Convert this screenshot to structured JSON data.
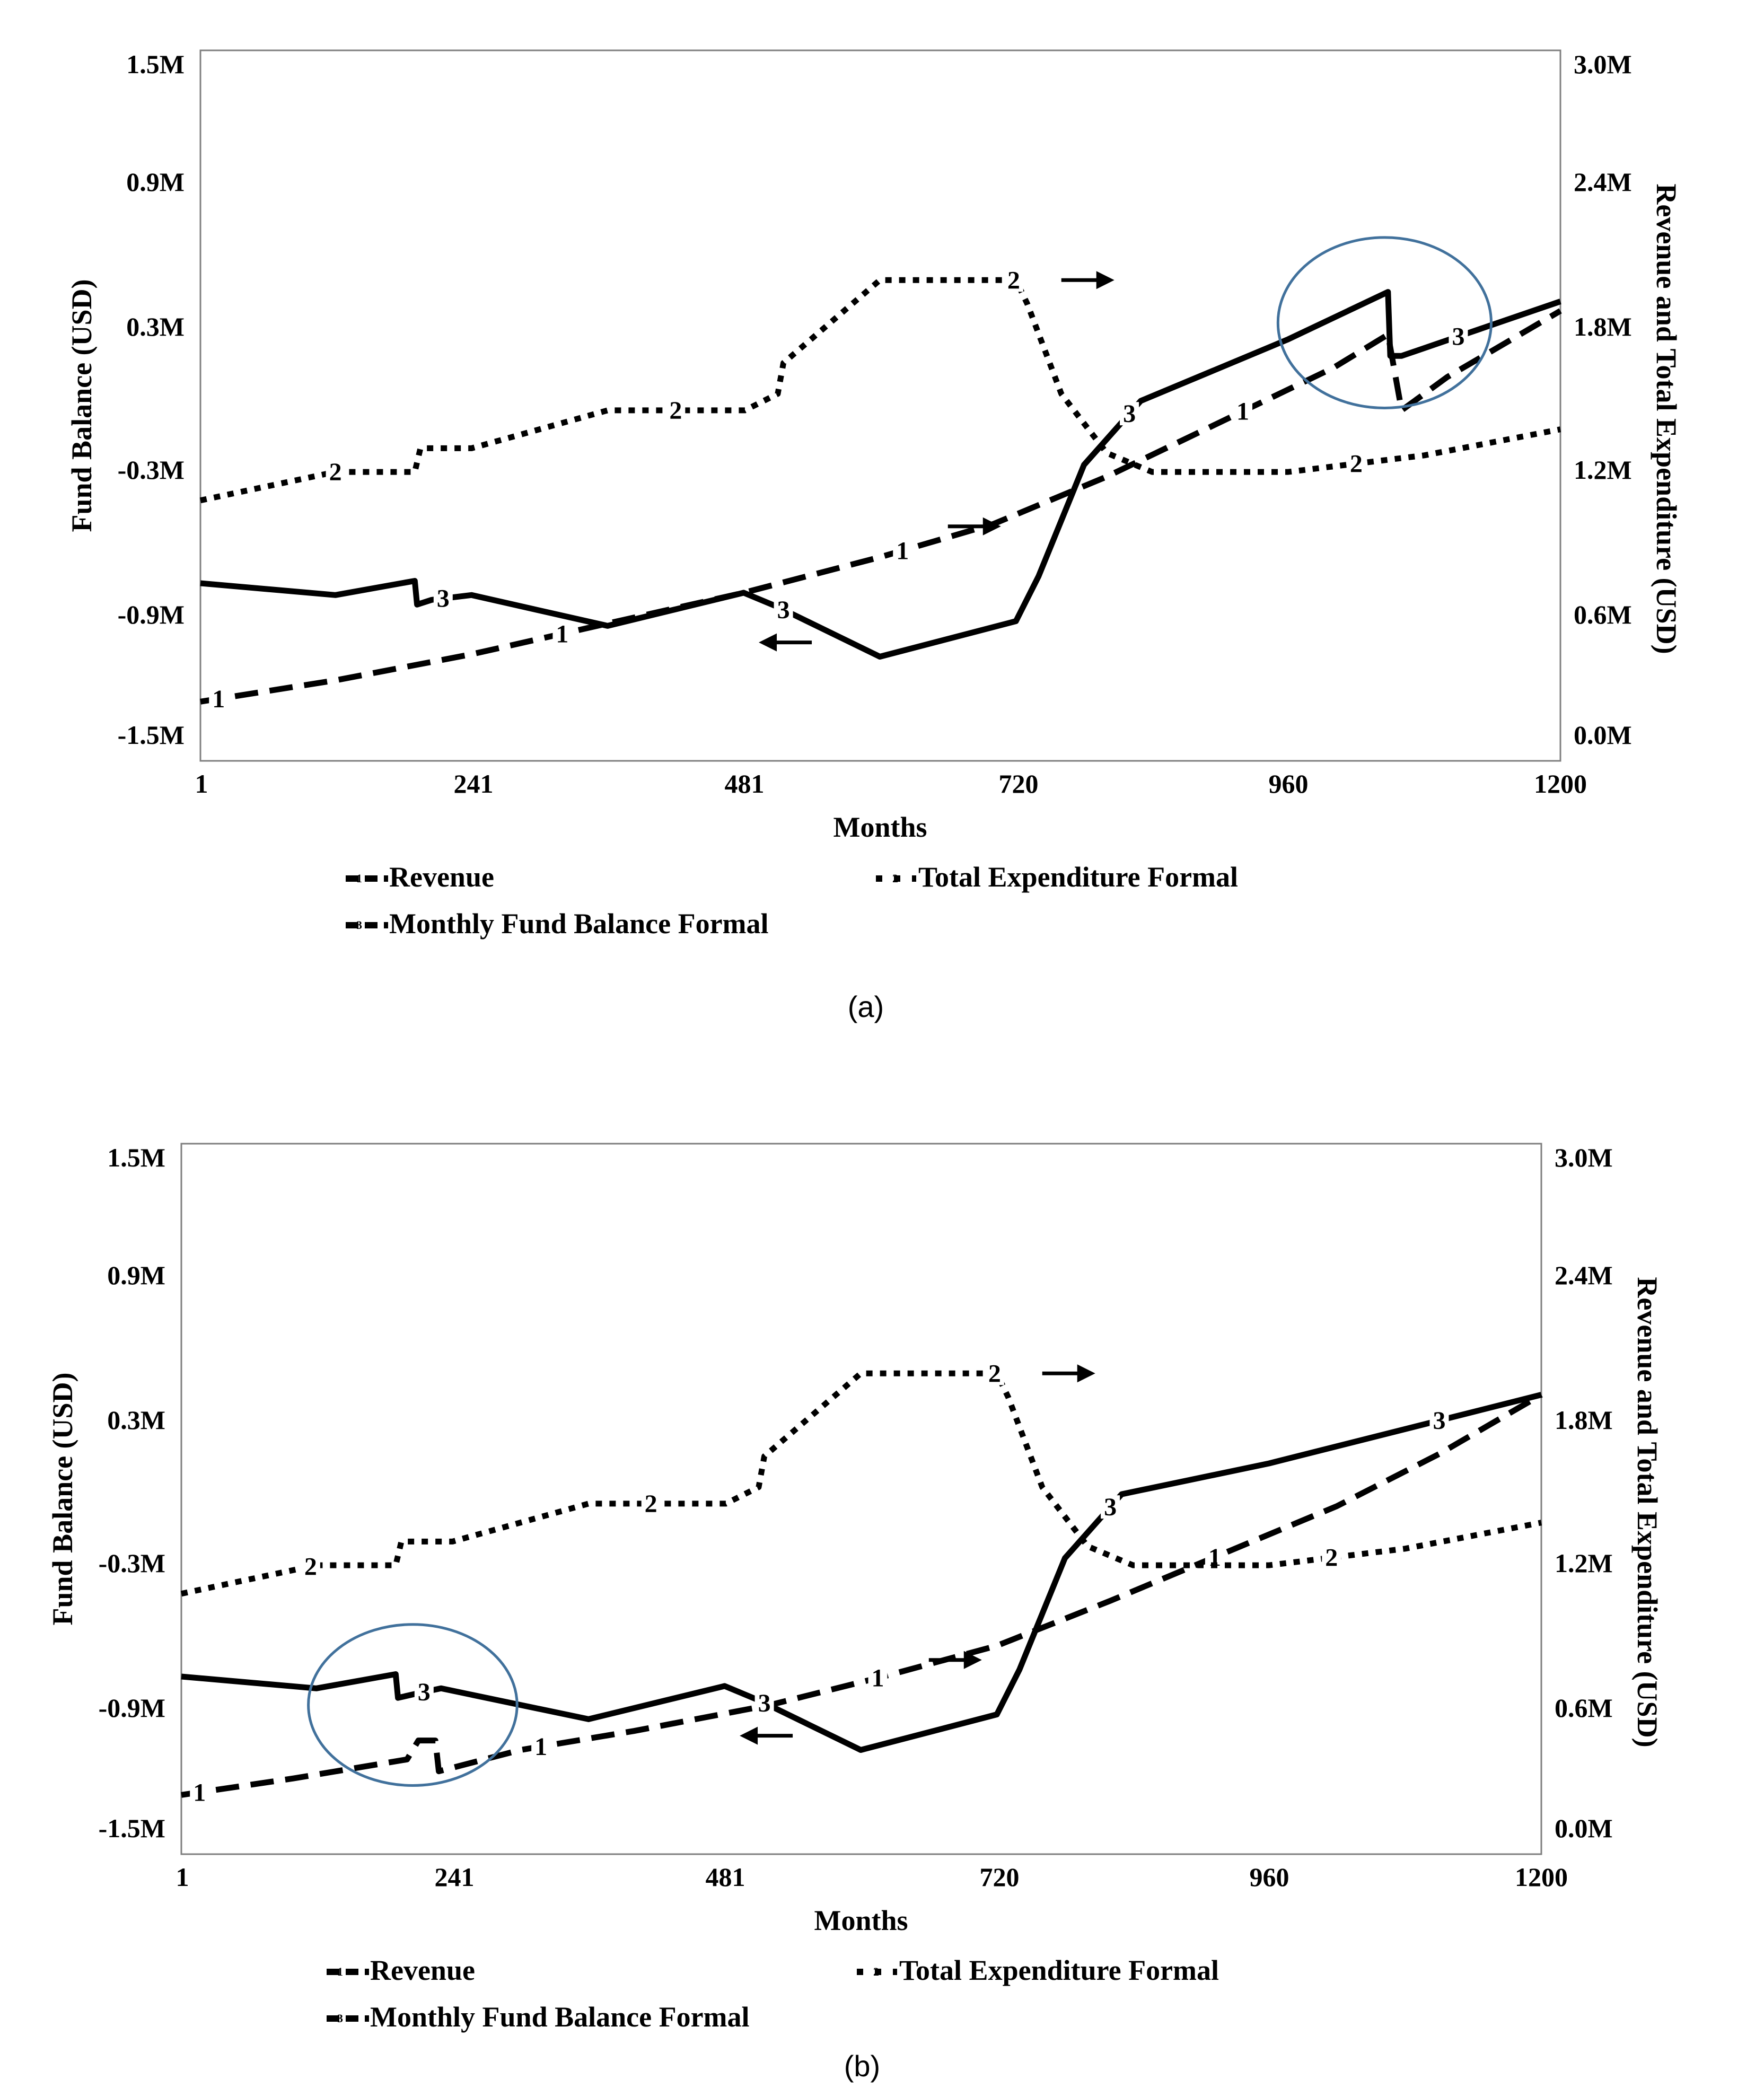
{
  "colors": {
    "line": "#000000",
    "frame": "#7f7f7f",
    "highlight_circle": "#41719c"
  },
  "chart_data": [
    {
      "type": "line",
      "panel": "a",
      "caption": "(a)",
      "xlabel": "Months",
      "ylabel_left": "Fund Balance (USD)",
      "ylabel_right": "Revenue and Total Expenditure (USD)",
      "x_ticks": [
        "1",
        "241",
        "481",
        "720",
        "960",
        "1200"
      ],
      "xlim": [
        1,
        1200
      ],
      "y_left_ticks": [
        "1.5M",
        "0.9M",
        "0.3M",
        "-0.3M",
        "-0.9M",
        "-1.5M"
      ],
      "y_left_lim": [
        -1.5,
        1.5
      ],
      "y_right_ticks": [
        "3.0M",
        "2.4M",
        "1.8M",
        "1.2M",
        "0.6M",
        "0.0M"
      ],
      "y_right_lim": [
        0,
        3.0
      ],
      "legend": {
        "placement": "bottom",
        "entries": [
          {
            "key": "1",
            "label": "Revenue",
            "style": "dashed"
          },
          {
            "key": "2",
            "label": "Total Expenditure Formal",
            "style": "dotted"
          },
          {
            "key": "3",
            "label": "Monthly Fund Balance Formal",
            "style": "solid"
          }
        ]
      },
      "series": [
        {
          "name": "Revenue",
          "key": "1",
          "axis": "right",
          "style": "dashed",
          "x": [
            1,
            120,
            240,
            360,
            480,
            600,
            700,
            800,
            900,
            1000,
            1048,
            1060,
            1100,
            1200
          ],
          "y": [
            0.25,
            0.34,
            0.45,
            0.58,
            0.71,
            0.86,
            1.0,
            1.2,
            1.43,
            1.66,
            1.8,
            1.48,
            1.62,
            1.9
          ],
          "labels": [
            {
              "text": "1",
              "x": 17
            },
            {
              "text": "1",
              "x": 320
            },
            {
              "text": "1",
              "x": 620
            },
            {
              "text": "1",
              "x": 920
            }
          ]
        },
        {
          "name": "Total Expenditure Formal",
          "key": "2",
          "axis": "right",
          "style": "dotted",
          "x": [
            1,
            120,
            190,
            195,
            240,
            360,
            481,
            510,
            515,
            600,
            720,
            730,
            760,
            800,
            840,
            960,
            1080,
            1200
          ],
          "y": [
            1.1,
            1.22,
            1.22,
            1.32,
            1.32,
            1.48,
            1.48,
            1.55,
            1.68,
            2.03,
            2.03,
            1.93,
            1.55,
            1.3,
            1.22,
            1.22,
            1.29,
            1.4
          ],
          "labels": [
            {
              "text": "2",
              "x": 120
            },
            {
              "text": "2",
              "x": 420
            },
            {
              "text": "2",
              "x": 718
            },
            {
              "text": "2",
              "x": 1020
            }
          ]
        },
        {
          "name": "Monthly Fund Balance Formal",
          "key": "3",
          "axis": "left",
          "style": "solid",
          "x": [
            1,
            120,
            190,
            192,
            205,
            240,
            360,
            480,
            510,
            600,
            720,
            740,
            780,
            830,
            960,
            1048,
            1050,
            1060,
            1200
          ],
          "y": [
            -0.75,
            -0.8,
            -0.74,
            -0.84,
            -0.82,
            -0.8,
            -0.93,
            -0.79,
            -0.85,
            -1.06,
            -0.91,
            -0.72,
            -0.25,
            0.02,
            0.28,
            0.48,
            0.21,
            0.21,
            0.44
          ],
          "labels": [
            {
              "text": "3",
              "x": 215
            },
            {
              "text": "3",
              "x": 515
            },
            {
              "text": "3",
              "x": 820
            },
            {
              "text": "3",
              "x": 1110
            }
          ]
        }
      ],
      "arrows": [
        {
          "series": "2",
          "direction": "right",
          "x": 760,
          "y_right": 2.03
        },
        {
          "series": "1",
          "direction": "right",
          "x": 660,
          "y_right": 0.99
        },
        {
          "series": "3",
          "direction": "left",
          "x": 540,
          "y_left": -1.0
        }
      ],
      "highlight": {
        "center_x": 1045,
        "center_y_left": 0.35,
        "radius_x_months": 94,
        "radius_y_left": 0.36
      }
    },
    {
      "type": "line",
      "panel": "b",
      "caption": "(b)",
      "xlabel": "Months",
      "ylabel_left": "Fund Balance (USD)",
      "ylabel_right": "Revenue and Total Expenditure (USD)",
      "x_ticks": [
        "1",
        "241",
        "481",
        "720",
        "960",
        "1200"
      ],
      "xlim": [
        1,
        1200
      ],
      "y_left_ticks": [
        "1.5M",
        "0.9M",
        "0.3M",
        "-0.3M",
        "-0.9M",
        "-1.5M"
      ],
      "y_left_lim": [
        -1.5,
        1.5
      ],
      "y_right_ticks": [
        "3.0M",
        "2.4M",
        "1.8M",
        "1.2M",
        "0.6M",
        "0.0M"
      ],
      "y_right_lim": [
        0,
        3.0
      ],
      "legend": {
        "placement": "bottom",
        "entries": [
          {
            "key": "1",
            "label": "Revenue",
            "style": "dashed"
          },
          {
            "key": "2",
            "label": "Total Expenditure Formal",
            "style": "dotted"
          },
          {
            "key": "3",
            "label": "Monthly Fund Balance Formal",
            "style": "solid"
          }
        ]
      },
      "series": [
        {
          "name": "Revenue",
          "key": "1",
          "axis": "right",
          "style": "dashed",
          "x": [
            1,
            100,
            200,
            210,
            225,
            228,
            300,
            400,
            520,
            620,
            720,
            820,
            920,
            1020,
            1110,
            1200
          ],
          "y": [
            0.25,
            0.32,
            0.4,
            0.48,
            0.48,
            0.35,
            0.44,
            0.52,
            0.63,
            0.75,
            0.88,
            1.07,
            1.27,
            1.47,
            1.69,
            1.94
          ],
          "labels": [
            {
              "text": "1",
              "x": 17
            },
            {
              "text": "1",
              "x": 318
            },
            {
              "text": "1",
              "x": 615
            },
            {
              "text": "1",
              "x": 912
            }
          ]
        },
        {
          "name": "Total Expenditure Formal",
          "key": "2",
          "axis": "right",
          "style": "dotted",
          "x": [
            1,
            120,
            190,
            195,
            240,
            360,
            481,
            510,
            515,
            600,
            720,
            730,
            760,
            800,
            840,
            960,
            1080,
            1200
          ],
          "y": [
            1.1,
            1.22,
            1.22,
            1.32,
            1.32,
            1.48,
            1.48,
            1.55,
            1.68,
            2.03,
            2.03,
            1.93,
            1.55,
            1.3,
            1.22,
            1.22,
            1.29,
            1.4
          ],
          "labels": [
            {
              "text": "2",
              "x": 115
            },
            {
              "text": "2",
              "x": 415
            },
            {
              "text": "2",
              "x": 718
            },
            {
              "text": "2",
              "x": 1015
            }
          ]
        },
        {
          "name": "Monthly Fund Balance Formal",
          "key": "3",
          "axis": "left",
          "style": "solid",
          "x": [
            1,
            120,
            190,
            192,
            210,
            230,
            360,
            480,
            510,
            600,
            720,
            740,
            780,
            830,
            960,
            1200
          ],
          "y": [
            -0.75,
            -0.8,
            -0.74,
            -0.84,
            -0.82,
            -0.8,
            -0.93,
            -0.79,
            -0.85,
            -1.06,
            -0.91,
            -0.72,
            -0.25,
            0.02,
            0.15,
            0.44
          ],
          "labels": [
            {
              "text": "3",
              "x": 215
            },
            {
              "text": "3",
              "x": 515
            },
            {
              "text": "3",
              "x": 820
            },
            {
              "text": "3",
              "x": 1110
            }
          ]
        }
      ],
      "arrows": [
        {
          "series": "2",
          "direction": "right",
          "x": 760,
          "y_right": 2.03
        },
        {
          "series": "1",
          "direction": "right",
          "x": 660,
          "y_right": 0.82
        },
        {
          "series": "3",
          "direction": "left",
          "x": 540,
          "y_left": -1.0
        }
      ],
      "highlight": {
        "center_x": 205,
        "center_y_left": -0.87,
        "radius_x_months": 92,
        "radius_y_left": 0.34
      }
    }
  ]
}
